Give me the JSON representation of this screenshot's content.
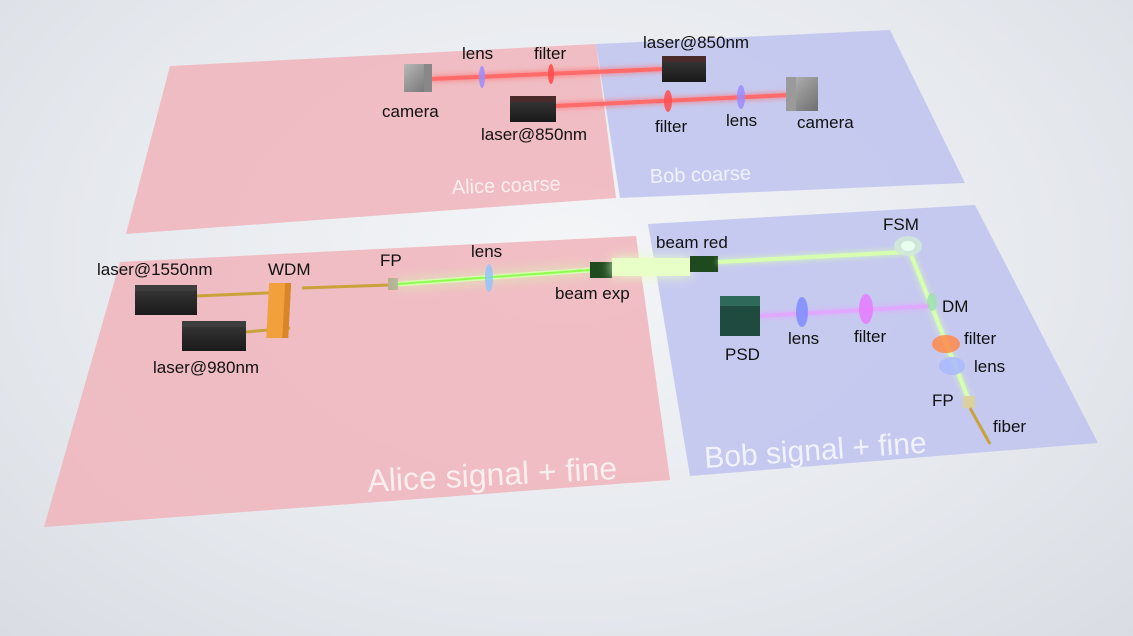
{
  "regions": {
    "alice_coarse": "Alice coarse",
    "bob_coarse": "Bob coarse",
    "alice_signal": "Alice signal + fine",
    "bob_signal": "Bob signal + fine"
  },
  "labels": {
    "alice_coarse_lens": "lens",
    "alice_coarse_filter": "filter",
    "alice_coarse_camera": "camera",
    "alice_coarse_laser": "laser@850nm",
    "bob_coarse_laser": "laser@850nm",
    "bob_coarse_filter": "filter",
    "bob_coarse_lens": "lens",
    "bob_coarse_camera": "camera",
    "laser_1550": "laser@1550nm",
    "wdm": "WDM",
    "laser_980": "laser@980nm",
    "alice_fp": "FP",
    "alice_lens": "lens",
    "beam_red": "beam red",
    "beam_exp": "beam exp",
    "fsm": "FSM",
    "dm": "DM",
    "psd": "PSD",
    "bob_lens": "lens",
    "bob_filter": "filter",
    "bob_filter2": "filter",
    "bob_lens2": "lens",
    "bob_fp": "FP",
    "fiber": "fiber"
  },
  "colors": {
    "alice_region": "#f0b4bb",
    "bob_region": "#bfc3ee",
    "red_beam": "#ff3b3b",
    "green_beam": "#b8ff7a",
    "violet_beam": "#d58aff",
    "fiber": "#c9a23a",
    "wdm": "#f2a03c"
  }
}
